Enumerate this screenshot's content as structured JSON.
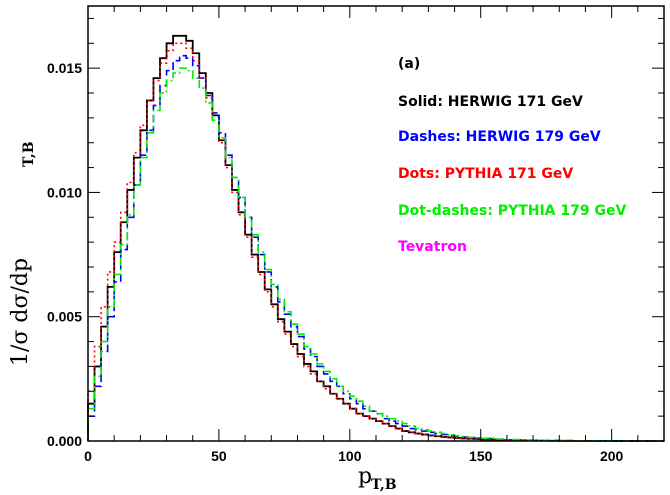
{
  "chart_data": {
    "type": "line",
    "panel_label": "(a)",
    "xlabel": {
      "main": "p",
      "sub": "T,B"
    },
    "ylabel": {
      "main": "1/σ  dσ/dp",
      "sub": "T,B"
    },
    "xlim": [
      0,
      220
    ],
    "ylim": [
      0,
      0.0175
    ],
    "x_ticks": [
      0,
      50,
      100,
      150,
      200
    ],
    "x_tick_labels": [
      "0",
      "50",
      "100",
      "150",
      "200"
    ],
    "y_ticks": [
      0,
      0.005,
      0.01,
      0.015
    ],
    "y_tick_labels": [
      "0.000",
      "0.005",
      "0.010",
      "0.015"
    ],
    "bin_width": 2.5,
    "x": [
      0,
      2.5,
      5,
      7.5,
      10,
      12.5,
      15,
      17.5,
      20,
      22.5,
      25,
      27.5,
      30,
      32.5,
      35,
      37.5,
      40,
      42.5,
      45,
      47.5,
      50,
      52.5,
      55,
      57.5,
      60,
      62.5,
      65,
      67.5,
      70,
      72.5,
      75,
      77.5,
      80,
      82.5,
      85,
      87.5,
      90,
      92.5,
      95,
      97.5,
      100,
      102.5,
      105,
      107.5,
      110,
      112.5,
      115,
      117.5,
      120,
      122.5,
      125,
      127.5,
      130,
      132.5,
      135,
      137.5,
      140,
      142.5,
      145,
      147.5,
      150,
      155,
      160,
      165,
      170,
      175,
      180,
      185,
      190,
      195,
      200,
      205,
      210,
      215,
      220
    ],
    "series": [
      {
        "name": "Solid: HERWIG 171 GeV",
        "color": "#000000",
        "style": "solid",
        "values": [
          0.0015,
          0.003,
          0.0046,
          0.0062,
          0.0076,
          0.0088,
          0.0101,
          0.0114,
          0.0125,
          0.0137,
          0.0146,
          0.0154,
          0.016,
          0.0163,
          0.0163,
          0.0161,
          0.0156,
          0.0148,
          0.014,
          0.0131,
          0.0121,
          0.0111,
          0.0101,
          0.0092,
          0.0083,
          0.0075,
          0.0068,
          0.0061,
          0.0055,
          0.0049,
          0.0044,
          0.0039,
          0.0035,
          0.0031,
          0.0028,
          0.0024,
          0.0022,
          0.0019,
          0.0017,
          0.0015,
          0.0013,
          0.0011,
          0.001,
          0.0009,
          0.0008,
          0.0007,
          0.0006,
          0.0005,
          0.0004,
          0.00035,
          0.0003,
          0.00026,
          0.00022,
          0.00019,
          0.00016,
          0.00014,
          0.00012,
          0.0001,
          9e-05,
          8e-05,
          6e-05,
          4e-05,
          3e-05,
          2e-05,
          1.5e-05,
          1e-05,
          8e-06,
          6e-06,
          5e-06,
          4e-06,
          3e-06,
          2e-06,
          2e-06,
          1e-06,
          1e-06
        ]
      },
      {
        "name": "Dashes: HERWIG 179 GeV",
        "color": "#0000ff",
        "style": "dashed",
        "values": [
          0.001,
          0.0022,
          0.0036,
          0.005,
          0.0064,
          0.0077,
          0.009,
          0.0103,
          0.0115,
          0.0125,
          0.0135,
          0.0143,
          0.0149,
          0.0153,
          0.0155,
          0.0154,
          0.0151,
          0.0146,
          0.0139,
          0.0132,
          0.0124,
          0.0115,
          0.0106,
          0.0098,
          0.009,
          0.0082,
          0.0075,
          0.0068,
          0.0062,
          0.0056,
          0.0051,
          0.0046,
          0.0042,
          0.0037,
          0.0034,
          0.003,
          0.0027,
          0.0024,
          0.0022,
          0.0019,
          0.0017,
          0.0015,
          0.0013,
          0.0012,
          0.0011,
          0.0009,
          0.0008,
          0.0007,
          0.0006,
          0.0005,
          0.00045,
          0.0004,
          0.00035,
          0.0003,
          0.00026,
          0.00022,
          0.00019,
          0.00016,
          0.00014,
          0.00012,
          0.0001,
          7e-05,
          5e-05,
          4e-05,
          3e-05,
          2e-05,
          1.5e-05,
          1e-05,
          8e-06,
          6e-06,
          5e-06,
          4e-06,
          3e-06,
          2e-06,
          2e-06
        ]
      },
      {
        "name": "Dots: PYTHIA 171 GeV",
        "color": "#ff0000",
        "style": "dotted",
        "values": [
          0.002,
          0.0038,
          0.0054,
          0.0068,
          0.008,
          0.0092,
          0.0104,
          0.0116,
          0.0127,
          0.0137,
          0.0145,
          0.0152,
          0.0157,
          0.016,
          0.016,
          0.0158,
          0.0153,
          0.0146,
          0.0138,
          0.0129,
          0.012,
          0.011,
          0.01,
          0.0091,
          0.0082,
          0.0074,
          0.0067,
          0.006,
          0.0054,
          0.0048,
          0.0043,
          0.0038,
          0.0034,
          0.003,
          0.0027,
          0.0024,
          0.0021,
          0.0019,
          0.0017,
          0.0015,
          0.0013,
          0.0011,
          0.001,
          0.0009,
          0.0008,
          0.0007,
          0.0006,
          0.0005,
          0.0004,
          0.00035,
          0.0003,
          0.00026,
          0.00022,
          0.00019,
          0.00016,
          0.00014,
          0.00012,
          0.0001,
          9e-05,
          8e-05,
          6e-05,
          4e-05,
          3e-05,
          2e-05,
          1.5e-05,
          1e-05,
          8e-06,
          6e-06,
          5e-06,
          4e-06,
          3e-06,
          2e-06,
          2e-06,
          1e-06,
          1e-06
        ]
      },
      {
        "name": "Dot-dashes: PYTHIA 179 GeV",
        "color": "#00ee00",
        "style": "dashdot",
        "values": [
          0.0013,
          0.0026,
          0.004,
          0.0054,
          0.0067,
          0.0079,
          0.0091,
          0.0103,
          0.0114,
          0.0124,
          0.0133,
          0.014,
          0.0145,
          0.0148,
          0.015,
          0.0149,
          0.0146,
          0.0142,
          0.0136,
          0.0129,
          0.0122,
          0.0114,
          0.0106,
          0.0098,
          0.009,
          0.0083,
          0.0076,
          0.0069,
          0.0063,
          0.0057,
          0.0052,
          0.0047,
          0.0043,
          0.0038,
          0.0035,
          0.0031,
          0.0028,
          0.0025,
          0.0022,
          0.002,
          0.0018,
          0.0016,
          0.0014,
          0.0012,
          0.0011,
          0.001,
          0.0009,
          0.0008,
          0.0007,
          0.0006,
          0.0005,
          0.00045,
          0.0004,
          0.00035,
          0.0003,
          0.00025,
          0.00021,
          0.00018,
          0.00015,
          0.00013,
          0.00011,
          8e-05,
          6e-05,
          4e-05,
          3e-05,
          2e-05,
          1.5e-05,
          1e-05,
          8e-06,
          6e-06,
          5e-06,
          4e-06,
          3e-06,
          2e-06,
          2e-06
        ]
      }
    ],
    "extra_legend": {
      "label": "Tevatron",
      "color": "#ff00ff"
    }
  }
}
